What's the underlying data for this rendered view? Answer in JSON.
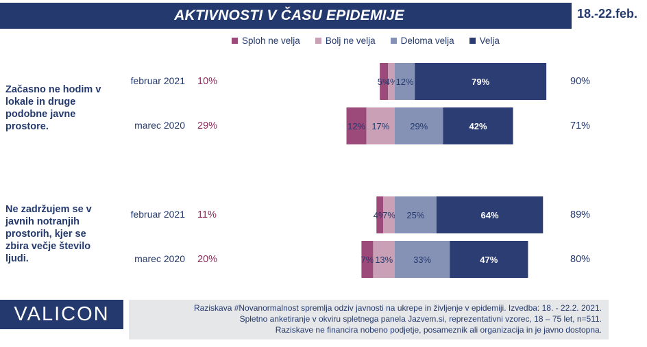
{
  "header": {
    "title": "AKTIVNOSTI V ČASU EPIDEMIJE",
    "date": "18.-22.feb."
  },
  "legend": [
    {
      "label": "Sploh ne velja",
      "color": "#9b4a7a"
    },
    {
      "label": "Bolj ne velja",
      "color": "#c9a0b6"
    },
    {
      "label": "Deloma velja",
      "color": "#8592b5"
    },
    {
      "label": "Velja",
      "color": "#2c3d73"
    }
  ],
  "questions": [
    {
      "text": "Začasno ne hodim v lokale in druge podobne javne prostore."
    },
    {
      "text": "Ne zadržujem se v javnih notranjih prostorih, kjer se zbira večje število ljudi."
    }
  ],
  "chart_data": {
    "type": "bar",
    "stacked": true,
    "categories": [
      "Začasno ne hodim v lokale in druge podobne javne prostore. — februar 2021",
      "Začasno ne hodim v lokale in druge podobne javne prostore. — marec 2020",
      "Ne zadržujem se v javnih notranjih prostorih, kjer se zbira večje število ljudi. — februar 2021",
      "Ne zadržujem se v javnih notranjih prostorih, kjer se zbira večje število ljudi. — marec 2020"
    ],
    "row_labels": [
      "februar 2021",
      "marec 2020",
      "februar 2021",
      "marec 2020"
    ],
    "series": [
      {
        "name": "Sploh ne velja",
        "values": [
          5,
          12,
          4,
          7
        ],
        "labels": [
          "5%",
          "12%",
          "4%",
          "7%"
        ]
      },
      {
        "name": "Bolj ne velja",
        "values": [
          4,
          17,
          7,
          13
        ],
        "labels": [
          "4%",
          "17%",
          "7%",
          "13%"
        ]
      },
      {
        "name": "Deloma velja",
        "values": [
          12,
          29,
          25,
          33
        ],
        "labels": [
          "12%",
          "29%",
          "25%",
          "33%"
        ]
      },
      {
        "name": "Velja",
        "values": [
          79,
          42,
          64,
          47
        ],
        "labels": [
          "79%",
          "42%",
          "64%",
          "47%"
        ]
      }
    ],
    "left_totals": [
      "10%",
      "29%",
      "11%",
      "20%"
    ],
    "right_totals": [
      "90%",
      "71%",
      "89%",
      "80%"
    ]
  },
  "footer": {
    "logo": "VALICON",
    "lines": [
      "Raziskava #Novanormalnost spremlja odziv javnosti na ukrepe in življenje v epidemiji. Izvedba: 18. - 22.2. 2021.",
      "Spletno anketiranje v okviru spletnega panela Jazvem.si, reprezentativni vzorec, 18 – 75 let, n=511.",
      "Raziskave ne financira nobeno podjetje, posameznik ali organizacija in je javno dostopna."
    ]
  }
}
